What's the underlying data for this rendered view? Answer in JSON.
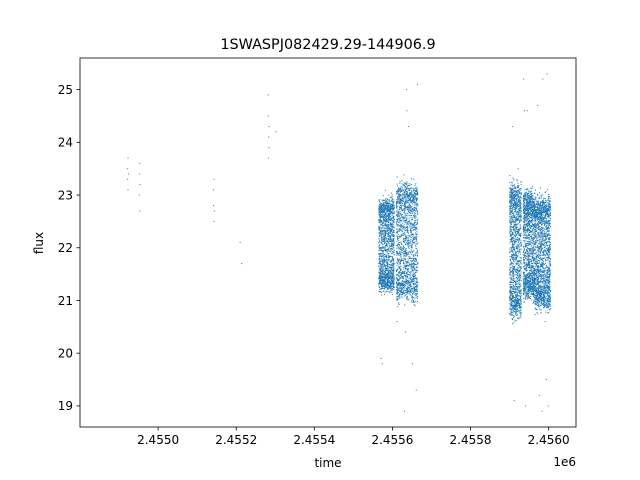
{
  "chart_data": {
    "type": "scatter",
    "title": "1SWASPJ082429.29-144906.9",
    "xlabel": "time",
    "ylabel": "flux",
    "x_offset_label": "1e6",
    "xlim": [
      2.4548,
      2.45607
    ],
    "ylim": [
      18.6,
      25.6
    ],
    "xticks": [
      2.455,
      2.4552,
      2.4554,
      2.4556,
      2.4558,
      2.456
    ],
    "xtick_labels": [
      "2.4550",
      "2.4552",
      "2.4554",
      "2.4556",
      "2.4558",
      "2.4560"
    ],
    "yticks": [
      19,
      20,
      21,
      22,
      23,
      24,
      25
    ],
    "ytick_labels": [
      "19",
      "20",
      "21",
      "22",
      "23",
      "24",
      "25"
    ],
    "grid": false,
    "marker_color": "#1f77b4",
    "series": [
      {
        "points": [
          [
            2.454922,
            23.5
          ],
          [
            2.454922,
            23.3
          ],
          [
            2.454923,
            23.1
          ],
          [
            2.454923,
            23.7
          ],
          [
            2.454924,
            23.4
          ],
          [
            2.454952,
            23.4
          ],
          [
            2.454952,
            23.0
          ],
          [
            2.454953,
            22.7
          ],
          [
            2.454953,
            23.6
          ],
          [
            2.454954,
            23.2
          ],
          [
            2.455142,
            23.1
          ],
          [
            2.455142,
            22.8
          ],
          [
            2.455143,
            22.5
          ],
          [
            2.455143,
            23.3
          ],
          [
            2.455144,
            22.7
          ],
          [
            2.45521,
            22.1
          ],
          [
            2.455214,
            21.7
          ],
          [
            2.455282,
            24.9
          ],
          [
            2.455282,
            24.5
          ],
          [
            2.455283,
            24.1
          ],
          [
            2.455283,
            23.7
          ],
          [
            2.455284,
            24.3
          ],
          [
            2.455284,
            23.9
          ],
          [
            2.455302,
            24.2
          ],
          [
            2.455571,
            19.9
          ],
          [
            2.455574,
            19.8
          ],
          [
            2.455584,
            21.3
          ],
          [
            2.455612,
            20.6
          ],
          [
            2.455631,
            18.9
          ],
          [
            2.455633,
            20.4
          ],
          [
            2.455636,
            25.0
          ],
          [
            2.455637,
            24.6
          ],
          [
            2.455641,
            24.3
          ],
          [
            2.455651,
            19.8
          ],
          [
            2.455661,
            19.3
          ],
          [
            2.455664,
            25.1
          ],
          [
            2.455908,
            24.3
          ],
          [
            2.455912,
            19.1
          ],
          [
            2.455936,
            25.2
          ],
          [
            2.455938,
            24.6
          ],
          [
            2.455941,
            19.0
          ],
          [
            2.455945,
            24.6
          ],
          [
            2.455972,
            24.7
          ],
          [
            2.455983,
            18.9
          ],
          [
            2.455985,
            25.2
          ],
          [
            2.455991,
            20.6
          ],
          [
            2.455994,
            19.5
          ],
          [
            2.455996,
            25.3
          ],
          [
            2.455999,
            19.0
          ],
          [
            2.455976,
            19.2
          ],
          [
            2.455922,
            23.5
          ],
          [
            2.455958,
            22.9
          ]
        ]
      }
    ],
    "dense_segments": [
      {
        "x_start": 2.455565,
        "x_end": 2.455605,
        "y_center": 22.05,
        "amplitude": 0.75,
        "spread": 0.22,
        "count": 1500
      },
      {
        "x_start": 2.45561,
        "x_end": 2.455665,
        "y_center": 22.1,
        "amplitude": 0.95,
        "spread": 0.28,
        "count": 1600
      },
      {
        "x_start": 2.4559,
        "x_end": 2.45593,
        "y_center": 21.95,
        "amplitude": 1.1,
        "spread": 0.3,
        "count": 1300
      },
      {
        "x_start": 2.455935,
        "x_end": 2.455965,
        "y_center": 22.05,
        "amplitude": 0.85,
        "spread": 0.28,
        "count": 1300
      },
      {
        "x_start": 2.455965,
        "x_end": 2.456005,
        "y_center": 21.9,
        "amplitude": 0.9,
        "spread": 0.28,
        "count": 1600
      }
    ]
  }
}
